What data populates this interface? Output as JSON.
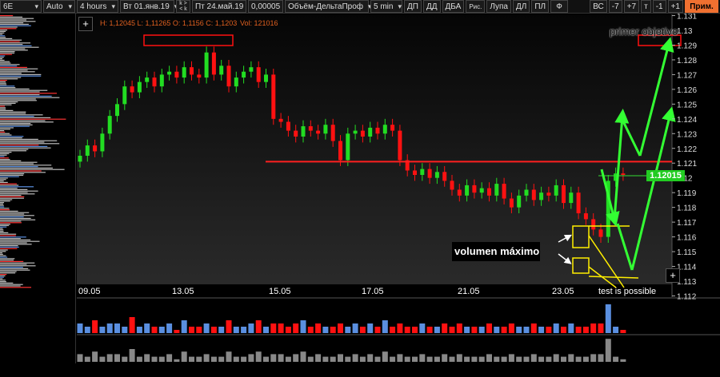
{
  "toolbar": {
    "symbol": "6E",
    "scale": "Auto",
    "timeframe": "4 hours",
    "date_from": "Вт 01.янв.19",
    "nav_top": "k >",
    "nav_bottom": "< k",
    "date_to": "Пт 24.май.19",
    "tick_size": "0,00005",
    "indicator": "Объём-ДельтаПроф",
    "interval": "5 min",
    "buttons": [
      "ДП",
      "ДД",
      "ДБА",
      "Рис.",
      "Лупа",
      "ДЛ",
      "ПЛ",
      "Ф"
    ],
    "right_buttons": [
      "ВС",
      "-7",
      "+7",
      "т",
      "-1",
      "+1"
    ],
    "apply": "Прим."
  },
  "info": {
    "ohlc": "H: 1,12045 L: 1,11265 O: 1,1156 C: 1,1203",
    "vol": "Vol: 121016"
  },
  "price_axis": {
    "ticks": [
      "1.131",
      "1.13",
      "1.129",
      "1.128",
      "1.127",
      "1.126",
      "1.125",
      "1.124",
      "1.123",
      "1.122",
      "1.121",
      "1.12",
      "1.119",
      "1.118",
      "1.117",
      "1.116",
      "1.115",
      "1.114",
      "1.113",
      "1.112"
    ],
    "current": "1.12015"
  },
  "date_axis": [
    "09.05",
    "13.05",
    "15.05",
    "17.05",
    "21.05",
    "23.05"
  ],
  "annotations": {
    "target": "primer objetivo",
    "max_volume": "volumen máximo",
    "test": "test is possible"
  },
  "colors": {
    "up": "#22dd22",
    "down": "#ff1111",
    "vol_up": "#5a8fe0",
    "vol_down": "#ff1111",
    "resistance": "#ff2020",
    "arrows": "#33ff33",
    "boxes": "#ffee00"
  },
  "chart_data": {
    "type": "candlestick",
    "resistance_level": 1.1211,
    "closes": [
      1.1215,
      1.1222,
      1.1218,
      1.123,
      1.1242,
      1.125,
      1.1262,
      1.1258,
      1.1265,
      1.1268,
      1.1262,
      1.127,
      1.1272,
      1.1268,
      1.1275,
      1.127,
      1.1268,
      1.1285,
      1.127,
      1.1276,
      1.1262,
      1.1268,
      1.1272,
      1.1275,
      1.1265,
      1.127,
      1.124,
      1.1238,
      1.1232,
      1.1228,
      1.1235,
      1.1232,
      1.123,
      1.1236,
      1.1225,
      1.1212,
      1.123,
      1.1232,
      1.1228,
      1.1234,
      1.123,
      1.1236,
      1.1232,
      1.1212,
      1.1205,
      1.1202,
      1.1206,
      1.12,
      1.1204,
      1.1198,
      1.1192,
      1.1188,
      1.1195,
      1.119,
      1.1193,
      1.1188,
      1.1196,
      1.1186,
      1.118,
      1.1188,
      1.1192,
      1.1185,
      1.119,
      1.1188,
      1.1195,
      1.1183,
      1.119,
      1.1176,
      1.1172,
      1.1165,
      1.116,
      1.1198,
      1.1203,
      1.1202
    ],
    "volumes": [
      3,
      2,
      4,
      2,
      3,
      3,
      2,
      5,
      2,
      3,
      2,
      2,
      3,
      1,
      4,
      2,
      2,
      3,
      2,
      2,
      4,
      2,
      2,
      3,
      4,
      2,
      3,
      3,
      2,
      3,
      4,
      2,
      3,
      2,
      2,
      3,
      2,
      3,
      2,
      3,
      2,
      4,
      2,
      3,
      2,
      2,
      3,
      2,
      2,
      3,
      2,
      3,
      2,
      2,
      2,
      3,
      2,
      2,
      3,
      2,
      2,
      3,
      2,
      2,
      3,
      2,
      3,
      2,
      2,
      3,
      3,
      9,
      2,
      1
    ]
  }
}
